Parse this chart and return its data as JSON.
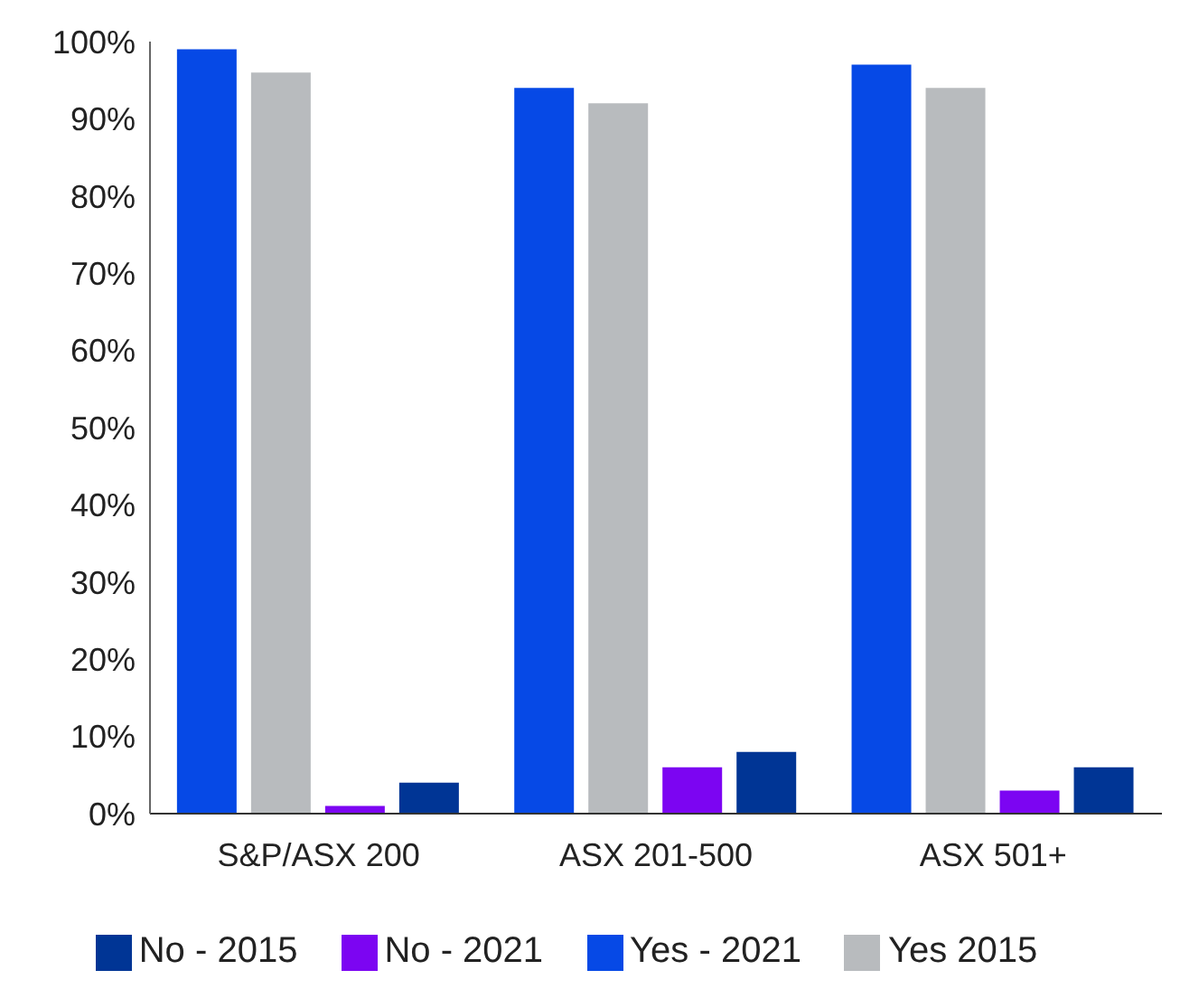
{
  "chart_data": {
    "type": "bar",
    "categories": [
      "S&P/ASX 200",
      "ASX 201-500",
      "ASX 501+"
    ],
    "series": [
      {
        "name": "Yes - 2021",
        "color": "#0649e6",
        "values": [
          99,
          94,
          97
        ]
      },
      {
        "name": "Yes 2015",
        "color": "#b8bbbe",
        "values": [
          96,
          92,
          94
        ]
      },
      {
        "name": "No - 2021",
        "color": "#7c05f2",
        "values": [
          1,
          6,
          3
        ]
      },
      {
        "name": "No - 2015",
        "color": "#003595",
        "values": [
          4,
          8,
          6
        ]
      }
    ],
    "ylim": [
      0,
      100
    ],
    "yticks": [
      {
        "value": 0,
        "label": "0%"
      },
      {
        "value": 10,
        "label": "10%"
      },
      {
        "value": 20,
        "label": "20%"
      },
      {
        "value": 30,
        "label": "30%"
      },
      {
        "value": 40,
        "label": "40%"
      },
      {
        "value": 50,
        "label": "50%"
      },
      {
        "value": 60,
        "label": "60%"
      },
      {
        "value": 70,
        "label": "70%"
      },
      {
        "value": 80,
        "label": "80%"
      },
      {
        "value": 90,
        "label": "90%"
      },
      {
        "value": 100,
        "label": "100%"
      }
    ],
    "legend": "bottom",
    "grid": false
  }
}
